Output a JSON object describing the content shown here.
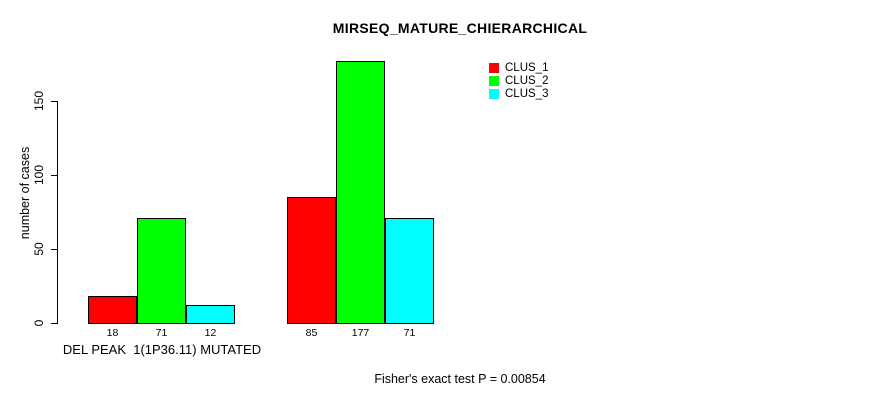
{
  "title": "MIRSEQ_MATURE_CHIERARCHICAL",
  "footer": "Fisher's exact test P = 0.00854",
  "chart_data": {
    "type": "bar",
    "title": "MIRSEQ_MATURE_CHIERARCHICAL",
    "ylabel": "number of cases",
    "xlabel": "DEL PEAK  1(1P36.11) MUTATED",
    "categories": [
      "DEL PEAK  1(1P36.11) MUTATED",
      ""
    ],
    "series": [
      {
        "name": "CLUS_1",
        "color": "#FF0000",
        "values": [
          18,
          85
        ]
      },
      {
        "name": "CLUS_2",
        "color": "#00FF00",
        "values": [
          71,
          177
        ]
      },
      {
        "name": "CLUS_3",
        "color": "#00FFFF",
        "values": [
          12,
          71
        ]
      }
    ],
    "bar_value_labels": [
      [
        "18",
        "71",
        "12"
      ],
      [
        "85",
        "177",
        "71"
      ]
    ],
    "yticks": [
      0,
      50,
      100,
      150
    ],
    "ylim": [
      0,
      180
    ],
    "grid": false,
    "legend_position": "top-right",
    "legend_entries": [
      "CLUS_1",
      "CLUS_2",
      "CLUS_3"
    ],
    "annotation": "Fisher's exact test P = 0.00854",
    "axis_color": "#000000",
    "background_color": "#FFFFFF"
  }
}
